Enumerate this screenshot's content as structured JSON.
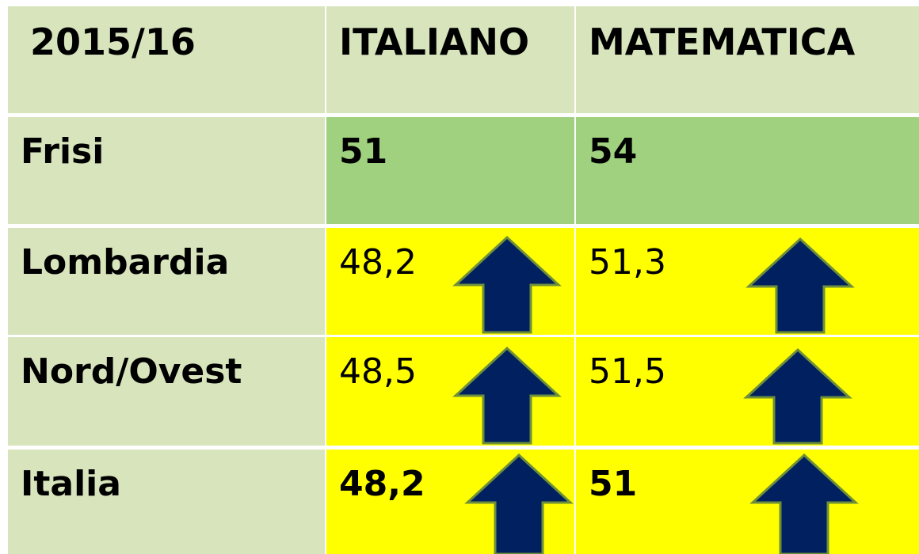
{
  "table": {
    "header": [
      "2015/16",
      "ITALIANO",
      "MATEMATICA"
    ],
    "rows": [
      [
        "Frisi",
        "51",
        "54"
      ],
      [
        "Lombardia",
        "48,2",
        "51,3"
      ],
      [
        "Nord/Ovest",
        "48,5",
        "51,5"
      ],
      [
        "Italia",
        "48,2",
        "51"
      ]
    ]
  }
}
